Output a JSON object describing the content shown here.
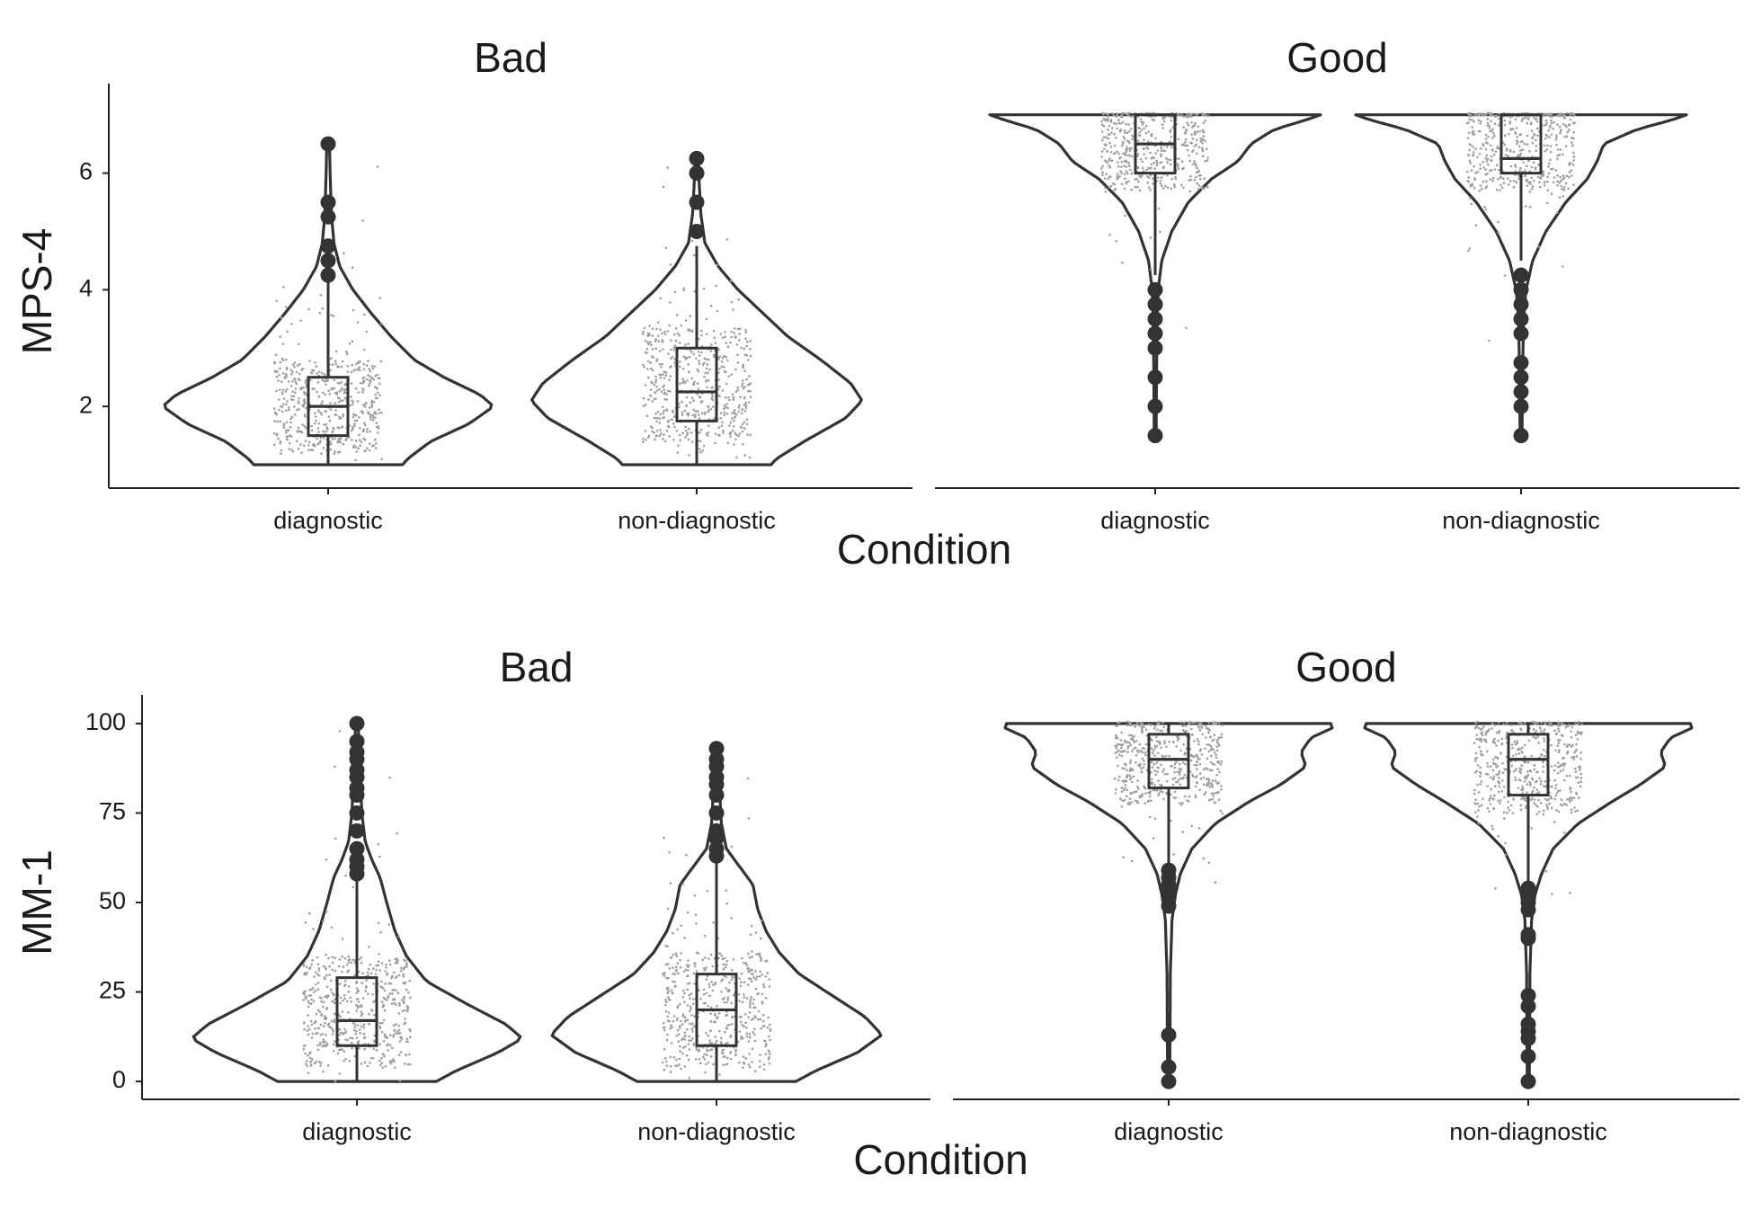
{
  "chart_data": [
    {
      "type": "violin",
      "ylabel": "MPS-4",
      "xlabel": "Condition",
      "ylim": [
        0.6,
        7.35
      ],
      "yticks": [
        2,
        4,
        6
      ],
      "categories": [
        "diagnostic",
        "non-diagnostic"
      ],
      "grid": false,
      "panels": [
        {
          "title": "Bad",
          "groups": [
            {
              "category": "diagnostic",
              "min": 1,
              "max": 6.5,
              "box": {
                "q1": 1.5,
                "median": 2.0,
                "q3": 2.5,
                "whisker_low": 1,
                "whisker_high": 4.25
              },
              "outliers": [
                4.25,
                4.5,
                4.75,
                5.25,
                5.5,
                6.5
              ],
              "profile": [
                [
                  1,
                  0.45
                ],
                [
                  1.1,
                  0.48
                ],
                [
                  1.4,
                  0.62
                ],
                [
                  1.7,
                  0.85
                ],
                [
                  2.0,
                  1.0
                ],
                [
                  2.2,
                  0.92
                ],
                [
                  2.5,
                  0.7
                ],
                [
                  2.8,
                  0.52
                ],
                [
                  3.2,
                  0.38
                ],
                [
                  3.6,
                  0.26
                ],
                [
                  4.0,
                  0.15
                ],
                [
                  4.4,
                  0.07
                ],
                [
                  4.8,
                  0.035
                ],
                [
                  5.3,
                  0.02
                ],
                [
                  6.0,
                  0.012
                ],
                [
                  6.5,
                  0.008
                ]
              ]
            },
            {
              "category": "non-diagnostic",
              "min": 1,
              "max": 6.25,
              "box": {
                "q1": 1.75,
                "median": 2.25,
                "q3": 3.0,
                "whisker_low": 1,
                "whisker_high": 4.75
              },
              "outliers": [
                5.0,
                5.5,
                6.0,
                6.25
              ],
              "profile": [
                [
                  1,
                  0.45
                ],
                [
                  1.1,
                  0.48
                ],
                [
                  1.4,
                  0.65
                ],
                [
                  1.8,
                  0.9
                ],
                [
                  2.1,
                  1.0
                ],
                [
                  2.4,
                  0.93
                ],
                [
                  2.8,
                  0.75
                ],
                [
                  3.2,
                  0.55
                ],
                [
                  3.6,
                  0.4
                ],
                [
                  4.0,
                  0.25
                ],
                [
                  4.4,
                  0.13
                ],
                [
                  4.8,
                  0.05
                ],
                [
                  5.3,
                  0.025
                ],
                [
                  6.0,
                  0.012
                ],
                [
                  6.25,
                  0.008
                ]
              ]
            }
          ]
        },
        {
          "title": "Good",
          "groups": [
            {
              "category": "diagnostic",
              "min": 1.5,
              "max": 7,
              "box": {
                "q1": 6.0,
                "median": 6.5,
                "q3": 7.0,
                "whisker_low": 4.25,
                "whisker_high": 7
              },
              "outliers": [
                4.0,
                3.75,
                3.5,
                3.25,
                3.0,
                2.5,
                2.0,
                1.5
              ],
              "profile": [
                [
                  1.5,
                  0.006
                ],
                [
                  2.5,
                  0.008
                ],
                [
                  3.5,
                  0.012
                ],
                [
                  4.0,
                  0.018
                ],
                [
                  4.5,
                  0.04
                ],
                [
                  5.0,
                  0.1
                ],
                [
                  5.5,
                  0.2
                ],
                [
                  5.9,
                  0.34
                ],
                [
                  6.2,
                  0.5
                ],
                [
                  6.5,
                  0.58
                ],
                [
                  6.75,
                  0.72
                ],
                [
                  6.9,
                  0.9
                ],
                [
                  7.0,
                  1.0
                ]
              ]
            },
            {
              "category": "non-diagnostic",
              "min": 1.5,
              "max": 7,
              "box": {
                "q1": 6.0,
                "median": 6.25,
                "q3": 7.0,
                "whisker_low": 4.5,
                "whisker_high": 7
              },
              "outliers": [
                4.25,
                4.0,
                3.75,
                3.5,
                3.25,
                2.75,
                2.5,
                2.25,
                2.0,
                1.5
              ],
              "profile": [
                [
                  1.5,
                  0.006
                ],
                [
                  2.5,
                  0.009
                ],
                [
                  3.5,
                  0.015
                ],
                [
                  4.0,
                  0.03
                ],
                [
                  4.5,
                  0.07
                ],
                [
                  5.0,
                  0.15
                ],
                [
                  5.5,
                  0.27
                ],
                [
                  5.9,
                  0.4
                ],
                [
                  6.2,
                  0.46
                ],
                [
                  6.5,
                  0.5
                ],
                [
                  6.75,
                  0.7
                ],
                [
                  6.9,
                  0.9
                ],
                [
                  7.0,
                  1.0
                ]
              ]
            }
          ]
        }
      ]
    },
    {
      "type": "violin",
      "ylabel": "MM-1",
      "xlabel": "Condition",
      "ylim": [
        -5,
        105
      ],
      "yticks": [
        0,
        25,
        50,
        75,
        100
      ],
      "categories": [
        "diagnostic",
        "non-diagnostic"
      ],
      "grid": false,
      "panels": [
        {
          "title": "Bad",
          "groups": [
            {
              "category": "diagnostic",
              "min": 0,
              "max": 100,
              "box": {
                "q1": 10,
                "median": 17,
                "q3": 29,
                "whisker_low": 0,
                "whisker_high": 57
              },
              "outliers": [
                58,
                60,
                62,
                65,
                70,
                75,
                80,
                82,
                85,
                87,
                90,
                92,
                95,
                100
              ],
              "profile": [
                [
                  0,
                  0.48
                ],
                [
                  3,
                  0.6
                ],
                [
                  8,
                  0.85
                ],
                [
                  12,
                  1.0
                ],
                [
                  16,
                  0.9
                ],
                [
                  22,
                  0.65
                ],
                [
                  28,
                  0.42
                ],
                [
                  35,
                  0.3
                ],
                [
                  42,
                  0.23
                ],
                [
                  50,
                  0.18
                ],
                [
                  57,
                  0.14
                ],
                [
                  62,
                  0.09
                ],
                [
                  67,
                  0.05
                ],
                [
                  75,
                  0.03
                ],
                [
                  85,
                  0.02
                ],
                [
                  95,
                  0.012
                ],
                [
                  100,
                  0.008
                ]
              ]
            },
            {
              "category": "non-diagnostic",
              "min": 0,
              "max": 93,
              "box": {
                "q1": 10,
                "median": 20,
                "q3": 30,
                "whisker_low": 0,
                "whisker_high": 62
              },
              "outliers": [
                63,
                65,
                68,
                70,
                75,
                80,
                83,
                85,
                88,
                90,
                93
              ],
              "profile": [
                [
                  0,
                  0.48
                ],
                [
                  3,
                  0.6
                ],
                [
                  8,
                  0.85
                ],
                [
                  13,
                  1.0
                ],
                [
                  18,
                  0.9
                ],
                [
                  24,
                  0.7
                ],
                [
                  30,
                  0.5
                ],
                [
                  36,
                  0.38
                ],
                [
                  42,
                  0.3
                ],
                [
                  48,
                  0.25
                ],
                [
                  55,
                  0.22
                ],
                [
                  60,
                  0.14
                ],
                [
                  65,
                  0.06
                ],
                [
                  72,
                  0.03
                ],
                [
                  80,
                  0.02
                ],
                [
                  88,
                  0.012
                ],
                [
                  93,
                  0.008
                ]
              ]
            }
          ]
        },
        {
          "title": "Good",
          "groups": [
            {
              "category": "diagnostic",
              "min": 0,
              "max": 100,
              "box": {
                "q1": 82,
                "median": 90,
                "q3": 97,
                "whisker_low": 60,
                "whisker_high": 100
              },
              "outliers": [
                59,
                57,
                55,
                53,
                51,
                49,
                13,
                4,
                0
              ],
              "profile": [
                [
                  0,
                  0.006
                ],
                [
                  10,
                  0.008
                ],
                [
                  30,
                  0.01
                ],
                [
                  45,
                  0.02
                ],
                [
                  52,
                  0.04
                ],
                [
                  58,
                  0.07
                ],
                [
                  65,
                  0.14
                ],
                [
                  72,
                  0.28
                ],
                [
                  78,
                  0.48
                ],
                [
                  83,
                  0.68
                ],
                [
                  88,
                  0.83
                ],
                [
                  92,
                  0.8
                ],
                [
                  96,
                  0.86
                ],
                [
                  99,
                  1.0
                ],
                [
                  100,
                  0.98
                ]
              ]
            },
            {
              "category": "non-diagnostic",
              "min": 0,
              "max": 100,
              "box": {
                "q1": 80,
                "median": 90,
                "q3": 97,
                "whisker_low": 56,
                "whisker_high": 100
              },
              "outliers": [
                54,
                52,
                50,
                48,
                41,
                40,
                24,
                21,
                16,
                14,
                12,
                7,
                0
              ],
              "profile": [
                [
                  0,
                  0.006
                ],
                [
                  10,
                  0.008
                ],
                [
                  30,
                  0.01
                ],
                [
                  45,
                  0.02
                ],
                [
                  52,
                  0.04
                ],
                [
                  58,
                  0.08
                ],
                [
                  65,
                  0.15
                ],
                [
                  72,
                  0.3
                ],
                [
                  78,
                  0.5
                ],
                [
                  83,
                  0.68
                ],
                [
                  88,
                  0.83
                ],
                [
                  92,
                  0.8
                ],
                [
                  96,
                  0.86
                ],
                [
                  99,
                  1.0
                ],
                [
                  100,
                  0.98
                ]
              ]
            }
          ]
        }
      ]
    }
  ]
}
